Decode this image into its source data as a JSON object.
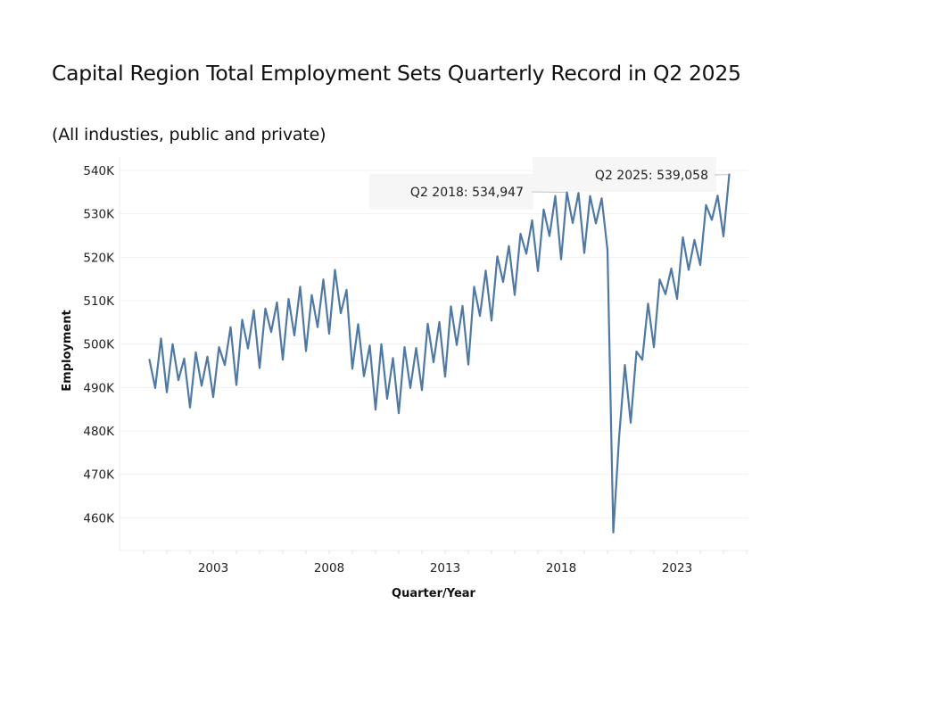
{
  "header": {
    "title": "Capital Region Total Employment Sets Quarterly Record in Q2 2025",
    "subtitle": "(All industies, public and private)"
  },
  "chart_data": {
    "type": "line",
    "title": "Capital Region Total Employment Sets Quarterly Record in Q2 2025",
    "subtitle": "(All industies, public and private)",
    "xlabel": "Quarter/Year",
    "ylabel": "Employment",
    "x_start": "Q2 2000",
    "x_end": "Q2 2025",
    "x_frequency": "quarterly",
    "xlim_years": [
      2000,
      2027
    ],
    "x_ticks": [
      2003,
      2008,
      2013,
      2018,
      2023
    ],
    "x_tick_labels": [
      "2003",
      "2008",
      "2013",
      "2018",
      "2023"
    ],
    "ylim": [
      452500,
      542000
    ],
    "y_ticks": [
      460000,
      470000,
      480000,
      490000,
      500000,
      510000,
      520000,
      530000,
      540000
    ],
    "y_tick_labels": [
      "460K",
      "470K",
      "480K",
      "490K",
      "500K",
      "510K",
      "520K",
      "530K",
      "540K"
    ],
    "grid": true,
    "line_color": "#4e79a7",
    "series": [
      {
        "name": "Employment",
        "values": [
          496400,
          489900,
          501300,
          488900,
          500000,
          491700,
          496700,
          485400,
          498100,
          490400,
          497100,
          487800,
          499300,
          495200,
          503900,
          490600,
          505600,
          499000,
          507800,
          494500,
          508200,
          502800,
          509600,
          496400,
          510400,
          502000,
          513200,
          498400,
          511300,
          503900,
          514900,
          502400,
          517100,
          507100,
          512500,
          494300,
          504600,
          492600,
          499700,
          484900,
          500000,
          487400,
          496800,
          484100,
          499300,
          489900,
          499100,
          489400,
          504700,
          495800,
          505100,
          492500,
          508700,
          499800,
          508800,
          495300,
          513200,
          506500,
          516900,
          505400,
          520200,
          514300,
          522600,
          511300,
          525400,
          520800,
          528500,
          516800,
          531000,
          524900,
          534100,
          519500,
          534947,
          527900,
          534800,
          521000,
          534100,
          527800,
          533600,
          521700,
          456600,
          478500,
          495200,
          481900,
          498300,
          496400,
          509300,
          499300,
          514900,
          511500,
          517400,
          510400,
          524600,
          517100,
          524000,
          518200,
          532000,
          528600,
          534200,
          524800,
          539058
        ]
      }
    ],
    "annotations": [
      {
        "label": "Q2 2018: 534,947",
        "quarter": "Q2 2018",
        "value": 534947
      },
      {
        "label": "Q2 2025: 539,058",
        "quarter": "Q2 2025",
        "value": 539058
      }
    ]
  }
}
